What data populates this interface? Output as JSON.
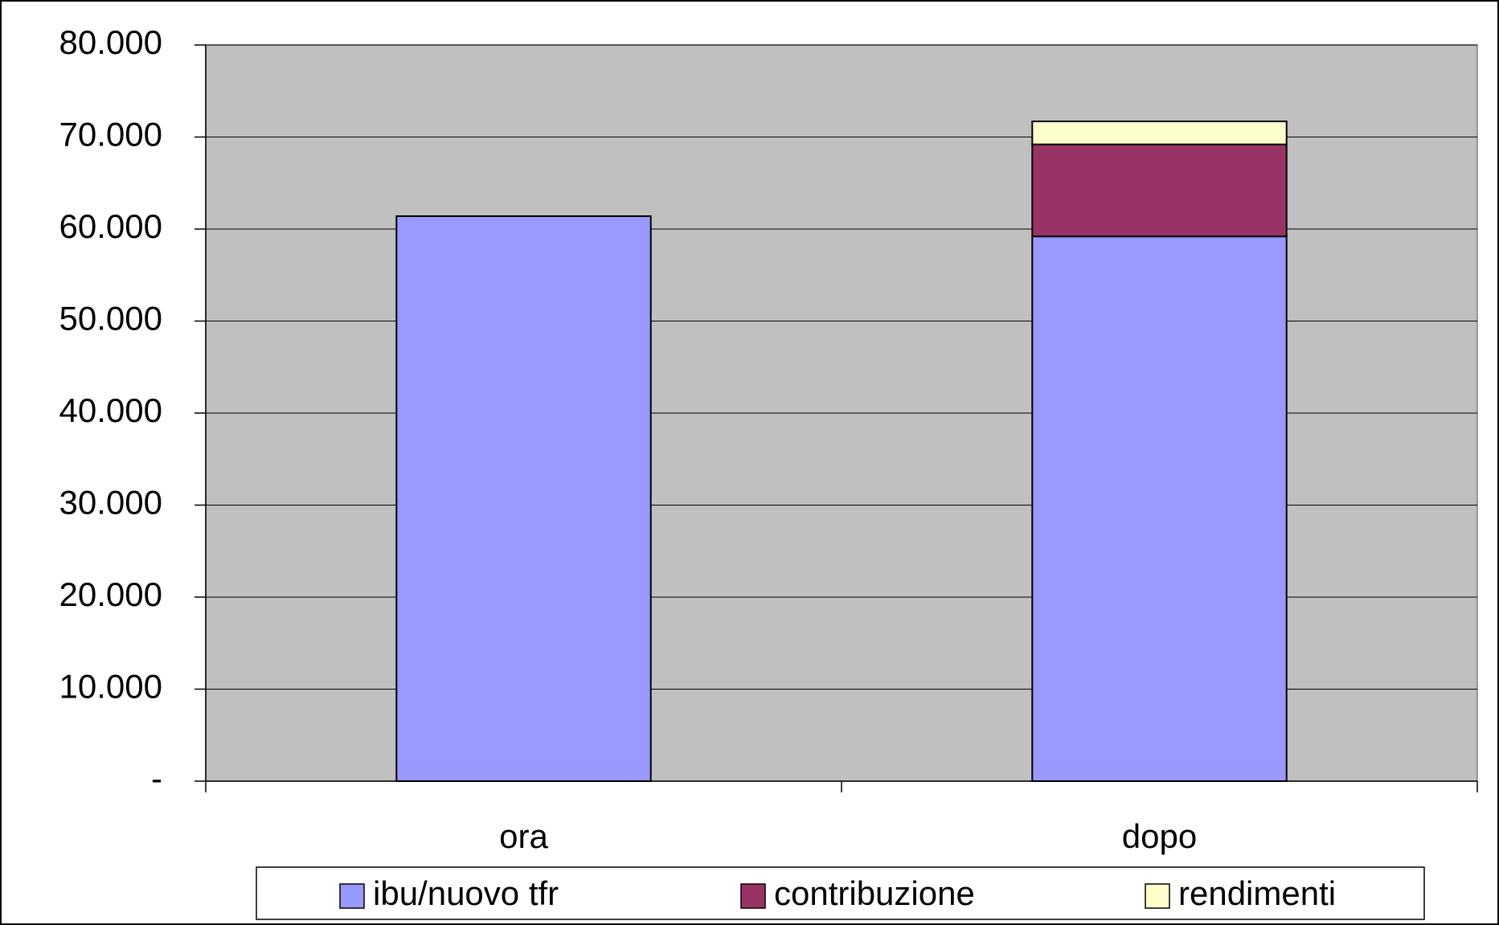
{
  "chart_data": {
    "type": "stacked_bar",
    "categories": [
      "ora",
      "dopo"
    ],
    "series": [
      {
        "name": "ibu/nuovo tfr",
        "color": "#9999ff",
        "values": [
          61400,
          59200
        ]
      },
      {
        "name": "contribuzione",
        "color": "#993366",
        "values": [
          0,
          10000
        ]
      },
      {
        "name": "rendimenti",
        "color": "#ffffcc",
        "values": [
          0,
          2500
        ]
      }
    ],
    "ylim": [
      0,
      80000
    ],
    "yticks": [
      {
        "value": 0,
        "label": "-"
      },
      {
        "value": 10000,
        "label": "10.000"
      },
      {
        "value": 20000,
        "label": "20.000"
      },
      {
        "value": 30000,
        "label": "30.000"
      },
      {
        "value": 40000,
        "label": "40.000"
      },
      {
        "value": 50000,
        "label": "50.000"
      },
      {
        "value": 60000,
        "label": "60.000"
      },
      {
        "value": 70000,
        "label": "70.000"
      },
      {
        "value": 80000,
        "label": "80.000"
      }
    ],
    "grid": true,
    "legend": "bottom"
  }
}
